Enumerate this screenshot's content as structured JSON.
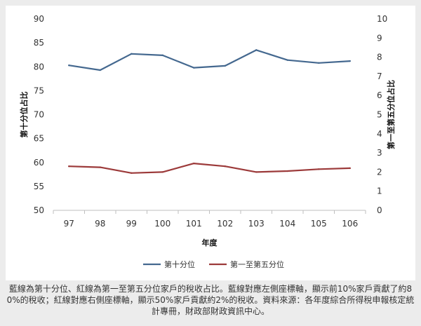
{
  "chart_data": {
    "type": "line",
    "categories": [
      "97",
      "98",
      "99",
      "100",
      "101",
      "102",
      "103",
      "104",
      "105",
      "106"
    ],
    "xlabel": "年度",
    "ylabel_left": "第十分位占比",
    "ylabel_right": "第一至第五分位占比",
    "ylim_left": [
      50,
      90
    ],
    "ylim_right": [
      0,
      10
    ],
    "yticks_left": [
      "50",
      "55",
      "60",
      "65",
      "70",
      "75",
      "80",
      "85",
      "90"
    ],
    "yticks_right": [
      "0",
      "1",
      "2",
      "3",
      "4",
      "5",
      "6",
      "7",
      "8",
      "9",
      "10"
    ],
    "grid": false,
    "legend_position": "bottom",
    "series": [
      {
        "name": "第十分位",
        "axis": "left",
        "color": "#44688f",
        "values": [
          80.3,
          79.3,
          82.7,
          82.4,
          79.8,
          80.2,
          83.5,
          81.4,
          80.8,
          81.2
        ]
      },
      {
        "name": "第一至第五分位",
        "axis": "right",
        "color": "#9c3a3a",
        "values": [
          2.3,
          2.25,
          1.95,
          2.0,
          2.45,
          2.3,
          2.0,
          2.05,
          2.15,
          2.2
        ]
      }
    ]
  },
  "caption": "藍線為第十分位、紅線為第一至第五分位家戶的稅收占比。藍線對應左側座標軸，顯示前10%家戶貢獻了約80%的稅收；紅線對應右側座標軸，顯示50%家戶貢獻約2%的稅收。資料來源：各年度綜合所得稅申報核定統計專冊，財政部財政資訊中心。"
}
